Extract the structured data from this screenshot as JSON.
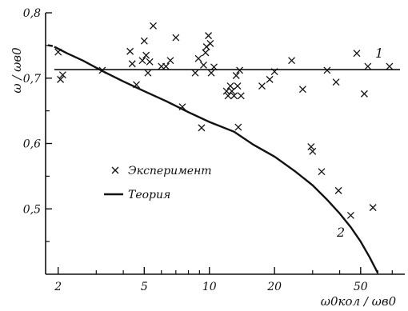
{
  "chart_data": {
    "type": "scatter",
    "title": "",
    "xlabel": "ω0кол / ωв0",
    "ylabel": "ω / ωв0",
    "x_scale": "log",
    "xlim": [
      1.75,
      80
    ],
    "ylim": [
      0.4,
      0.8
    ],
    "x_ticks": [
      2,
      5,
      10,
      20,
      50
    ],
    "y_ticks": [
      0.5,
      0.6,
      0.7,
      0.8
    ],
    "x_tick_labels": [
      "2",
      "5",
      "10",
      "20",
      "50"
    ],
    "y_tick_labels": [
      "0,5",
      "0,6",
      "0,7",
      "0,8"
    ],
    "grid": false,
    "legend_position": "left-middle",
    "series": [
      {
        "name": "Эксперимент",
        "kind": "markers",
        "marker": "x",
        "points": [
          [
            2.0,
            0.74
          ],
          [
            2.05,
            0.698
          ],
          [
            2.1,
            0.705
          ],
          [
            3.2,
            0.712
          ],
          [
            4.3,
            0.741
          ],
          [
            4.4,
            0.722
          ],
          [
            4.6,
            0.69
          ],
          [
            4.9,
            0.727
          ],
          [
            5.0,
            0.757
          ],
          [
            5.1,
            0.735
          ],
          [
            5.2,
            0.708
          ],
          [
            5.3,
            0.725
          ],
          [
            5.5,
            0.78
          ],
          [
            6.0,
            0.718
          ],
          [
            6.3,
            0.718
          ],
          [
            6.6,
            0.727
          ],
          [
            7.0,
            0.762
          ],
          [
            7.5,
            0.656
          ],
          [
            8.6,
            0.708
          ],
          [
            8.9,
            0.73
          ],
          [
            9.2,
            0.624
          ],
          [
            9.4,
            0.72
          ],
          [
            9.6,
            0.739
          ],
          [
            9.7,
            0.748
          ],
          [
            9.9,
            0.765
          ],
          [
            10.1,
            0.753
          ],
          [
            10.2,
            0.708
          ],
          [
            10.5,
            0.717
          ],
          [
            12.0,
            0.68
          ],
          [
            12.2,
            0.673
          ],
          [
            12.5,
            0.688
          ],
          [
            12.7,
            0.68
          ],
          [
            13.0,
            0.673
          ],
          [
            13.3,
            0.704
          ],
          [
            13.5,
            0.688
          ],
          [
            13.6,
            0.625
          ],
          [
            13.8,
            0.712
          ],
          [
            14.0,
            0.673
          ],
          [
            17.5,
            0.688
          ],
          [
            19.0,
            0.698
          ],
          [
            20.0,
            0.71
          ],
          [
            24.0,
            0.727
          ],
          [
            27.0,
            0.683
          ],
          [
            29.5,
            0.595
          ],
          [
            30.0,
            0.588
          ],
          [
            33.0,
            0.557
          ],
          [
            35.0,
            0.712
          ],
          [
            38.5,
            0.694
          ],
          [
            39.5,
            0.528
          ],
          [
            45.0,
            0.49
          ],
          [
            48.0,
            0.738
          ],
          [
            52.0,
            0.676
          ],
          [
            54.0,
            0.718
          ],
          [
            57.0,
            0.502
          ],
          [
            68.0,
            0.718
          ]
        ]
      },
      {
        "name": "Теория",
        "kind": "line",
        "label": "2",
        "points": [
          [
            1.92,
            0.748
          ],
          [
            2.2,
            0.738
          ],
          [
            2.6,
            0.727
          ],
          [
            3.2,
            0.711
          ],
          [
            4.0,
            0.695
          ],
          [
            5.0,
            0.68
          ],
          [
            6.3,
            0.665
          ],
          [
            8.0,
            0.648
          ],
          [
            10.0,
            0.633
          ],
          [
            13.0,
            0.618
          ],
          [
            16.0,
            0.598
          ],
          [
            20.0,
            0.58
          ],
          [
            25.0,
            0.557
          ],
          [
            30.0,
            0.536
          ],
          [
            35.0,
            0.514
          ],
          [
            40.0,
            0.493
          ],
          [
            45.0,
            0.472
          ],
          [
            50.0,
            0.45
          ],
          [
            55.0,
            0.426
          ],
          [
            60.0,
            0.402
          ]
        ]
      },
      {
        "name": "",
        "kind": "line",
        "label": "1",
        "points": [
          [
            1.92,
            0.713
          ],
          [
            76.0,
            0.713
          ]
        ]
      }
    ]
  },
  "legend": {
    "experiment": "Эксперимент",
    "theory": "Теория"
  },
  "axes": {
    "ylabel": "ω / ωв0",
    "xlabel": "ω0кол / ωв0"
  },
  "curve_labels": {
    "line1": "1",
    "curve2": "2"
  },
  "colors": {
    "ink": "#111111",
    "background": "#ffffff"
  }
}
